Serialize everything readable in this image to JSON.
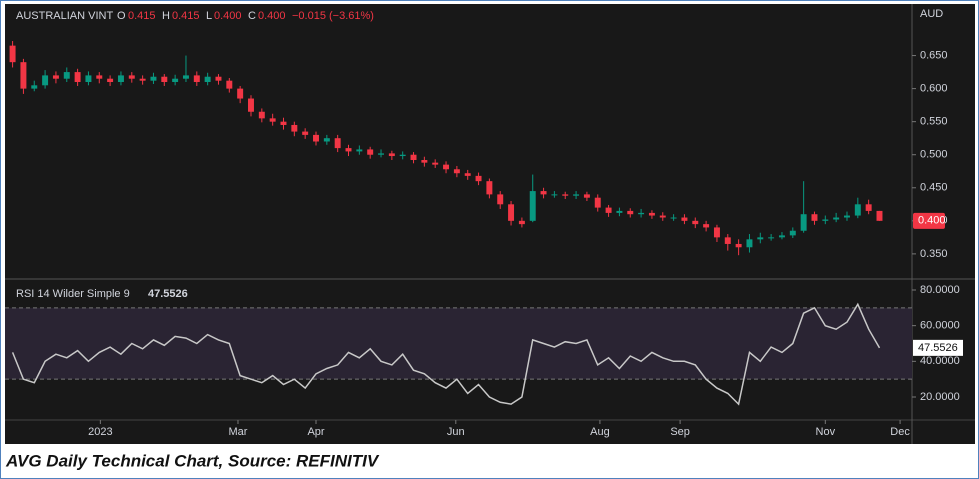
{
  "header": {
    "symbol": "AUSTRALIAN VINT",
    "open_label": "O",
    "open": "0.415",
    "high_label": "H",
    "high": "0.415",
    "low_label": "L",
    "low": "0.400",
    "close_label": "C",
    "close": "0.400",
    "change": "−0.015 (−3.61%)",
    "currency": "AUD",
    "last_price_label": "0.400"
  },
  "caption": "AVG Daily Technical Chart, Source: REFINITIV",
  "chart_data": [
    {
      "type": "candlestick",
      "up_color": "#089981",
      "down_color": "#f23645",
      "tag_color": "#f23645",
      "ylim": [
        0.312,
        0.728
      ],
      "yticks": [
        {
          "value": 0.35,
          "label": "0.350"
        },
        {
          "value": 0.4,
          "label": "0.400"
        },
        {
          "value": 0.45,
          "label": "0.450"
        },
        {
          "value": 0.5,
          "label": "0.500"
        },
        {
          "value": 0.55,
          "label": "0.550"
        },
        {
          "value": 0.6,
          "label": "0.600"
        },
        {
          "value": 0.65,
          "label": "0.650"
        }
      ],
      "open": [
        0.665,
        0.64,
        0.6,
        0.605,
        0.62,
        0.615,
        0.625,
        0.61,
        0.62,
        0.615,
        0.61,
        0.62,
        0.615,
        0.612,
        0.618,
        0.61,
        0.615,
        0.62,
        0.61,
        0.618,
        0.612,
        0.6,
        0.585,
        0.565,
        0.555,
        0.55,
        0.545,
        0.535,
        0.53,
        0.52,
        0.525,
        0.51,
        0.505,
        0.508,
        0.5,
        0.502,
        0.498,
        0.5,
        0.492,
        0.488,
        0.485,
        0.478,
        0.472,
        0.468,
        0.46,
        0.44,
        0.425,
        0.4,
        0.4,
        0.445,
        0.44,
        0.44,
        0.438,
        0.44,
        0.435,
        0.42,
        0.412,
        0.415,
        0.41,
        0.412,
        0.408,
        0.405,
        0.405,
        0.4,
        0.395,
        0.39,
        0.375,
        0.365,
        0.36,
        0.372,
        0.375,
        0.375,
        0.378,
        0.385,
        0.41,
        0.4,
        0.402,
        0.405,
        0.408,
        0.425,
        0.415
      ],
      "high": [
        0.672,
        0.645,
        0.612,
        0.628,
        0.626,
        0.632,
        0.63,
        0.626,
        0.625,
        0.62,
        0.626,
        0.625,
        0.62,
        0.624,
        0.622,
        0.621,
        0.65,
        0.626,
        0.624,
        0.622,
        0.616,
        0.604,
        0.59,
        0.57,
        0.562,
        0.556,
        0.55,
        0.54,
        0.535,
        0.53,
        0.53,
        0.515,
        0.514,
        0.512,
        0.508,
        0.506,
        0.505,
        0.504,
        0.497,
        0.493,
        0.49,
        0.483,
        0.477,
        0.473,
        0.464,
        0.445,
        0.43,
        0.405,
        0.47,
        0.45,
        0.445,
        0.444,
        0.445,
        0.444,
        0.44,
        0.424,
        0.42,
        0.419,
        0.418,
        0.416,
        0.413,
        0.41,
        0.41,
        0.405,
        0.4,
        0.394,
        0.38,
        0.372,
        0.38,
        0.382,
        0.38,
        0.383,
        0.39,
        0.46,
        0.414,
        0.408,
        0.412,
        0.414,
        0.435,
        0.432,
        0.415
      ],
      "low": [
        0.632,
        0.592,
        0.596,
        0.6,
        0.608,
        0.61,
        0.604,
        0.605,
        0.608,
        0.604,
        0.605,
        0.609,
        0.606,
        0.607,
        0.604,
        0.605,
        0.61,
        0.604,
        0.605,
        0.606,
        0.594,
        0.578,
        0.558,
        0.549,
        0.544,
        0.538,
        0.528,
        0.524,
        0.514,
        0.515,
        0.504,
        0.498,
        0.5,
        0.494,
        0.496,
        0.492,
        0.493,
        0.487,
        0.482,
        0.48,
        0.472,
        0.466,
        0.462,
        0.454,
        0.434,
        0.418,
        0.393,
        0.39,
        0.398,
        0.434,
        0.435,
        0.433,
        0.433,
        0.43,
        0.414,
        0.406,
        0.407,
        0.405,
        0.405,
        0.403,
        0.4,
        0.4,
        0.395,
        0.389,
        0.384,
        0.368,
        0.355,
        0.348,
        0.352,
        0.366,
        0.37,
        0.372,
        0.374,
        0.382,
        0.394,
        0.395,
        0.398,
        0.4,
        0.404,
        0.41,
        0.4
      ],
      "close": [
        0.64,
        0.6,
        0.605,
        0.62,
        0.615,
        0.625,
        0.61,
        0.62,
        0.615,
        0.61,
        0.62,
        0.615,
        0.612,
        0.618,
        0.61,
        0.615,
        0.62,
        0.61,
        0.618,
        0.612,
        0.6,
        0.585,
        0.565,
        0.555,
        0.55,
        0.545,
        0.535,
        0.53,
        0.52,
        0.525,
        0.51,
        0.505,
        0.508,
        0.5,
        0.502,
        0.498,
        0.5,
        0.492,
        0.488,
        0.485,
        0.478,
        0.472,
        0.468,
        0.46,
        0.44,
        0.425,
        0.4,
        0.395,
        0.445,
        0.44,
        0.44,
        0.438,
        0.44,
        0.435,
        0.42,
        0.412,
        0.415,
        0.41,
        0.412,
        0.408,
        0.405,
        0.405,
        0.4,
        0.395,
        0.39,
        0.375,
        0.365,
        0.36,
        0.372,
        0.375,
        0.375,
        0.378,
        0.385,
        0.41,
        0.4,
        0.402,
        0.405,
        0.408,
        0.425,
        0.415,
        0.4
      ]
    },
    {
      "type": "line",
      "title": "RSI 14 Wilder Simple 9",
      "last_value": "47.5526",
      "color": "#c8c8c8",
      "band_color": "#2a2433",
      "ylim": [
        7.1,
        85.6
      ],
      "yticks": [
        {
          "value": 20,
          "label": "20.0000"
        },
        {
          "value": 40,
          "label": "40.0000"
        },
        {
          "value": 60,
          "label": "60.0000"
        },
        {
          "value": 80,
          "label": "80.0000"
        }
      ],
      "bands": [
        30,
        70
      ],
      "values": [
        45,
        30,
        28,
        40,
        44,
        42,
        46,
        40,
        45,
        48,
        44,
        50,
        47,
        52,
        49,
        54,
        53,
        50,
        55,
        52,
        50,
        32,
        30,
        28,
        32,
        27,
        30,
        25,
        33,
        36,
        38,
        45,
        42,
        47,
        40,
        38,
        44,
        35,
        33,
        28,
        25,
        30,
        22,
        27,
        20,
        17,
        16,
        20,
        52,
        50,
        48,
        51,
        50,
        52,
        38,
        42,
        36,
        43,
        40,
        45,
        42,
        40,
        40,
        38,
        30,
        25,
        22,
        16,
        45,
        40,
        48,
        45,
        50,
        67,
        70,
        60,
        58,
        62,
        72,
        58,
        47.5526
      ],
      "xlim": [
        -0.7,
        83
      ],
      "xticks": [
        {
          "value": 8.1,
          "label": "2023"
        },
        {
          "value": 20.8,
          "label": "Mar"
        },
        {
          "value": 28.0,
          "label": "Apr"
        },
        {
          "value": 40.9,
          "label": "Jun"
        },
        {
          "value": 54.2,
          "label": "Aug"
        },
        {
          "value": 61.6,
          "label": "Sep"
        },
        {
          "value": 75.0,
          "label": "Nov"
        },
        {
          "value": 81.9,
          "label": "Dec"
        }
      ]
    }
  ]
}
